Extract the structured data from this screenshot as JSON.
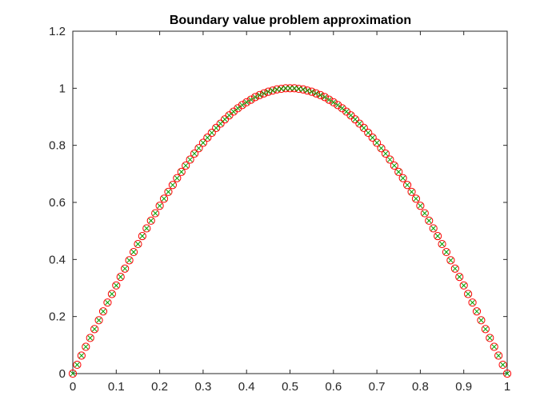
{
  "chart_data": {
    "type": "scatter",
    "title": "Boundary value problem approximation",
    "xlabel": "",
    "ylabel": "",
    "xlim": [
      0,
      1
    ],
    "ylim": [
      0,
      1.2
    ],
    "xticks": [
      0,
      0.1,
      0.2,
      0.3,
      0.4,
      0.5,
      0.6,
      0.7,
      0.8,
      0.9,
      1
    ],
    "xtick_labels": [
      "0",
      "0.1",
      "0.2",
      "0.3",
      "0.4",
      "0.5",
      "0.6",
      "0.7",
      "0.8",
      "0.9",
      "1"
    ],
    "yticks": [
      0,
      0.2,
      0.4,
      0.6,
      0.8,
      1,
      1.2
    ],
    "ytick_labels": [
      "0",
      "0.2",
      "0.4",
      "0.6",
      "0.8",
      "1",
      "1.2"
    ],
    "grid": false,
    "box": true,
    "series": [
      {
        "marker": "circle",
        "color": "#ff0000",
        "x": [
          0,
          0.01,
          0.02,
          0.03,
          0.04,
          0.05,
          0.06,
          0.07,
          0.08,
          0.09,
          0.1,
          0.11,
          0.12,
          0.13,
          0.14,
          0.15,
          0.16,
          0.17,
          0.18,
          0.19,
          0.2,
          0.21,
          0.22,
          0.23,
          0.24,
          0.25,
          0.26,
          0.27,
          0.28,
          0.29,
          0.3,
          0.31,
          0.32,
          0.33,
          0.34,
          0.35,
          0.36,
          0.37,
          0.38,
          0.39,
          0.4,
          0.41,
          0.42,
          0.43,
          0.44,
          0.45,
          0.46,
          0.47,
          0.48,
          0.49,
          0.5,
          0.51,
          0.52,
          0.53,
          0.54,
          0.55,
          0.56,
          0.57,
          0.58,
          0.59,
          0.6,
          0.61,
          0.62,
          0.63,
          0.64,
          0.65,
          0.66,
          0.67,
          0.68,
          0.69,
          0.7,
          0.71,
          0.72,
          0.73,
          0.74,
          0.75,
          0.76,
          0.77,
          0.78,
          0.79,
          0.8,
          0.81,
          0.82,
          0.83,
          0.84,
          0.85,
          0.86,
          0.87,
          0.88,
          0.89,
          0.9,
          0.91,
          0.92,
          0.93,
          0.94,
          0.95,
          0.96,
          0.97,
          0.98,
          0.99,
          1
        ],
        "y": [
          0,
          0.031,
          0.063,
          0.094,
          0.125,
          0.156,
          0.187,
          0.218,
          0.249,
          0.279,
          0.309,
          0.339,
          0.368,
          0.397,
          0.426,
          0.454,
          0.482,
          0.509,
          0.536,
          0.562,
          0.588,
          0.613,
          0.637,
          0.661,
          0.685,
          0.707,
          0.729,
          0.75,
          0.771,
          0.79,
          0.809,
          0.827,
          0.844,
          0.861,
          0.876,
          0.891,
          0.905,
          0.918,
          0.93,
          0.941,
          0.951,
          0.96,
          0.969,
          0.976,
          0.982,
          0.988,
          0.992,
          0.996,
          0.998,
          1.0,
          1.0,
          1.0,
          0.998,
          0.996,
          0.992,
          0.988,
          0.982,
          0.976,
          0.969,
          0.96,
          0.951,
          0.941,
          0.93,
          0.918,
          0.905,
          0.891,
          0.876,
          0.861,
          0.844,
          0.827,
          0.809,
          0.79,
          0.771,
          0.75,
          0.729,
          0.707,
          0.685,
          0.661,
          0.637,
          0.613,
          0.588,
          0.562,
          0.536,
          0.509,
          0.482,
          0.454,
          0.426,
          0.397,
          0.368,
          0.339,
          0.309,
          0.279,
          0.249,
          0.218,
          0.187,
          0.156,
          0.125,
          0.094,
          0.063,
          0.031,
          0
        ]
      },
      {
        "marker": "x",
        "color": "#00a000",
        "x": [
          0,
          0.01,
          0.02,
          0.03,
          0.04,
          0.05,
          0.06,
          0.07,
          0.08,
          0.09,
          0.1,
          0.11,
          0.12,
          0.13,
          0.14,
          0.15,
          0.16,
          0.17,
          0.18,
          0.19,
          0.2,
          0.21,
          0.22,
          0.23,
          0.24,
          0.25,
          0.26,
          0.27,
          0.28,
          0.29,
          0.3,
          0.31,
          0.32,
          0.33,
          0.34,
          0.35,
          0.36,
          0.37,
          0.38,
          0.39,
          0.4,
          0.41,
          0.42,
          0.43,
          0.44,
          0.45,
          0.46,
          0.47,
          0.48,
          0.49,
          0.5,
          0.51,
          0.52,
          0.53,
          0.54,
          0.55,
          0.56,
          0.57,
          0.58,
          0.59,
          0.6,
          0.61,
          0.62,
          0.63,
          0.64,
          0.65,
          0.66,
          0.67,
          0.68,
          0.69,
          0.7,
          0.71,
          0.72,
          0.73,
          0.74,
          0.75,
          0.76,
          0.77,
          0.78,
          0.79,
          0.8,
          0.81,
          0.82,
          0.83,
          0.84,
          0.85,
          0.86,
          0.87,
          0.88,
          0.89,
          0.9,
          0.91,
          0.92,
          0.93,
          0.94,
          0.95,
          0.96,
          0.97,
          0.98,
          0.99,
          1
        ],
        "y": [
          0,
          0.031,
          0.063,
          0.094,
          0.125,
          0.156,
          0.187,
          0.218,
          0.249,
          0.279,
          0.309,
          0.339,
          0.368,
          0.397,
          0.426,
          0.454,
          0.482,
          0.509,
          0.536,
          0.562,
          0.588,
          0.613,
          0.637,
          0.661,
          0.685,
          0.707,
          0.729,
          0.75,
          0.771,
          0.79,
          0.809,
          0.827,
          0.844,
          0.861,
          0.876,
          0.891,
          0.905,
          0.918,
          0.93,
          0.941,
          0.951,
          0.96,
          0.969,
          0.976,
          0.982,
          0.988,
          0.992,
          0.996,
          0.998,
          1.0,
          1.0,
          1.0,
          0.998,
          0.996,
          0.992,
          0.988,
          0.982,
          0.976,
          0.969,
          0.96,
          0.951,
          0.941,
          0.93,
          0.918,
          0.905,
          0.891,
          0.876,
          0.861,
          0.844,
          0.827,
          0.809,
          0.79,
          0.771,
          0.75,
          0.729,
          0.707,
          0.685,
          0.661,
          0.637,
          0.613,
          0.588,
          0.562,
          0.536,
          0.509,
          0.482,
          0.454,
          0.426,
          0.397,
          0.368,
          0.339,
          0.309,
          0.279,
          0.249,
          0.218,
          0.187,
          0.156,
          0.125,
          0.094,
          0.063,
          0.031,
          0
        ]
      }
    ]
  }
}
